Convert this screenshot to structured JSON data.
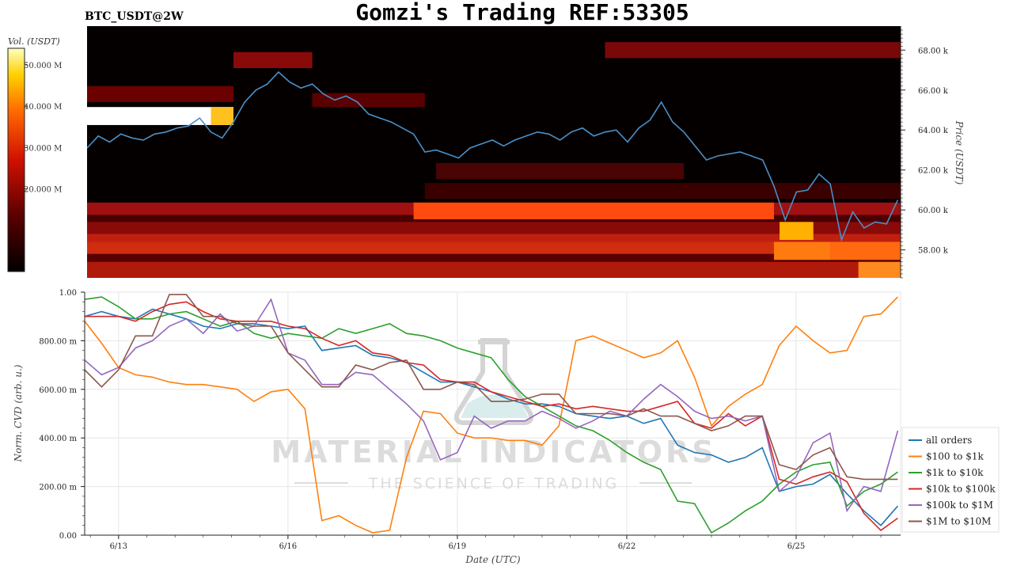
{
  "header": {
    "pair_label": "BTC_USDT@2W",
    "title": "Gomzi's Trading REF:53305"
  },
  "watermark": {
    "main": "MATERIAL INDICATORS",
    "sub": "THE SCIENCE OF TRADING"
  },
  "colors": {
    "heatmap_bg": "#050000",
    "price_line": "#4a90c8",
    "grid": "#e6e6e6"
  },
  "chart_data": [
    {
      "type": "heatmap",
      "name_label": "Volume heatmap",
      "colorbar": {
        "label": "Vol. (USDT)",
        "ticks": [
          "20.000 M",
          "30.000 M",
          "40.000 M",
          "50.000 M"
        ],
        "tick_values": [
          20,
          30,
          40,
          50
        ],
        "range": [
          0,
          54
        ]
      },
      "y_axis": {
        "label": "Price (USDT)",
        "ticks": [
          "58.00 k",
          "60.00 k",
          "62.00 k",
          "64.00 k",
          "66.00 k",
          "68.00 k"
        ],
        "tick_values": [
          58,
          60,
          62,
          64,
          66,
          68
        ],
        "range": [
          56.6,
          69.2
        ]
      },
      "x_range": [
        12.4,
        26.85
      ],
      "price_series": {
        "x": [
          12.4,
          12.6,
          12.8,
          13.0,
          13.2,
          13.4,
          13.6,
          13.8,
          14.0,
          14.2,
          14.4,
          14.6,
          14.8,
          15.0,
          15.2,
          15.4,
          15.6,
          15.8,
          16.0,
          16.2,
          16.4,
          16.6,
          16.8,
          17.0,
          17.2,
          17.4,
          17.6,
          17.8,
          18.0,
          18.2,
          18.4,
          18.6,
          18.8,
          19.0,
          19.2,
          19.4,
          19.6,
          19.8,
          20.0,
          20.2,
          20.4,
          20.6,
          20.8,
          21.0,
          21.2,
          21.4,
          21.6,
          21.8,
          22.0,
          22.2,
          22.4,
          22.6,
          22.8,
          23.0,
          23.2,
          23.4,
          23.6,
          23.8,
          24.0,
          24.2,
          24.4,
          24.6,
          24.8,
          25.0,
          25.2,
          25.4,
          25.6,
          25.8,
          26.0,
          26.2,
          26.4,
          26.6,
          26.8
        ],
        "y": [
          63.1,
          63.7,
          63.4,
          63.8,
          63.6,
          63.5,
          63.8,
          63.9,
          64.1,
          64.2,
          64.6,
          63.9,
          63.6,
          64.4,
          65.4,
          66.0,
          66.3,
          66.9,
          66.4,
          66.1,
          66.3,
          65.8,
          65.5,
          65.7,
          65.4,
          64.8,
          64.6,
          64.4,
          64.1,
          63.8,
          62.9,
          63.0,
          62.8,
          62.6,
          63.1,
          63.3,
          63.5,
          63.2,
          63.5,
          63.7,
          63.9,
          63.8,
          63.5,
          63.9,
          64.1,
          63.7,
          63.9,
          64.0,
          63.4,
          64.1,
          64.5,
          65.4,
          64.4,
          63.9,
          63.2,
          62.5,
          62.7,
          62.8,
          62.9,
          62.7,
          62.5,
          61.2,
          59.5,
          60.9,
          61.0,
          61.8,
          61.3,
          58.5,
          59.9,
          59.1,
          59.4,
          59.3,
          60.5
        ]
      }
    },
    {
      "type": "line",
      "x_axis": {
        "label": "Date (UTC)",
        "ticks": [
          "6/13",
          "6/16",
          "6/19",
          "6/22",
          "6/25"
        ],
        "tick_values": [
          13,
          16,
          19,
          22,
          25
        ],
        "range": [
          12.4,
          26.85
        ]
      },
      "y_axis": {
        "label": "Norm. CVD (arb. u.)",
        "ticks": [
          "0.00",
          "200.00 m",
          "400.00 m",
          "600.00 m",
          "800.00 m",
          "1.00"
        ],
        "tick_values": [
          0,
          0.2,
          0.4,
          0.6,
          0.8,
          1.0
        ],
        "range": [
          0,
          1
        ]
      },
      "x": [
        12.4,
        12.7,
        13.0,
        13.3,
        13.6,
        13.9,
        14.2,
        14.5,
        14.8,
        15.1,
        15.4,
        15.7,
        16.0,
        16.3,
        16.6,
        16.9,
        17.2,
        17.5,
        17.8,
        18.1,
        18.4,
        18.7,
        19.0,
        19.3,
        19.6,
        19.9,
        20.2,
        20.5,
        20.8,
        21.1,
        21.4,
        21.7,
        22.0,
        22.3,
        22.6,
        22.9,
        23.2,
        23.5,
        23.8,
        24.1,
        24.4,
        24.7,
        25.0,
        25.3,
        25.6,
        25.9,
        26.2,
        26.5,
        26.8
      ],
      "legend": {
        "placement": "right"
      },
      "series": [
        {
          "name": "all orders",
          "color": "#1f77b4",
          "values": [
            0.9,
            0.92,
            0.9,
            0.89,
            0.93,
            0.91,
            0.89,
            0.86,
            0.85,
            0.87,
            0.87,
            0.86,
            0.85,
            0.86,
            0.76,
            0.77,
            0.78,
            0.74,
            0.73,
            0.71,
            0.67,
            0.63,
            0.63,
            0.61,
            0.59,
            0.56,
            0.54,
            0.54,
            0.53,
            0.5,
            0.49,
            0.48,
            0.49,
            0.46,
            0.48,
            0.37,
            0.34,
            0.33,
            0.3,
            0.32,
            0.36,
            0.18,
            0.2,
            0.21,
            0.25,
            0.17,
            0.1,
            0.04,
            0.12
          ]
        },
        {
          "name": "$100 to $1k",
          "color": "#ff7f0e",
          "values": [
            0.88,
            0.79,
            0.69,
            0.66,
            0.65,
            0.63,
            0.62,
            0.62,
            0.61,
            0.6,
            0.55,
            0.59,
            0.6,
            0.52,
            0.06,
            0.08,
            0.04,
            0.01,
            0.02,
            0.32,
            0.51,
            0.5,
            0.42,
            0.4,
            0.4,
            0.39,
            0.39,
            0.37,
            0.45,
            0.8,
            0.82,
            0.79,
            0.76,
            0.73,
            0.75,
            0.8,
            0.65,
            0.45,
            0.53,
            0.58,
            0.62,
            0.78,
            0.86,
            0.8,
            0.75,
            0.76,
            0.9,
            0.91,
            0.98
          ]
        },
        {
          "name": "$1k to $10k",
          "color": "#2ca02c",
          "values": [
            0.97,
            0.98,
            0.94,
            0.89,
            0.89,
            0.91,
            0.92,
            0.89,
            0.86,
            0.88,
            0.83,
            0.81,
            0.83,
            0.82,
            0.81,
            0.85,
            0.83,
            0.85,
            0.87,
            0.83,
            0.82,
            0.8,
            0.77,
            0.75,
            0.73,
            0.64,
            0.57,
            0.53,
            0.49,
            0.45,
            0.43,
            0.39,
            0.34,
            0.3,
            0.27,
            0.14,
            0.13,
            0.01,
            0.05,
            0.1,
            0.14,
            0.21,
            0.26,
            0.29,
            0.3,
            0.12,
            0.18,
            0.21,
            0.26
          ]
        },
        {
          "name": "$10k to $100k",
          "color": "#d62728",
          "values": [
            0.9,
            0.9,
            0.9,
            0.88,
            0.92,
            0.95,
            0.96,
            0.92,
            0.89,
            0.88,
            0.88,
            0.88,
            0.86,
            0.85,
            0.81,
            0.78,
            0.8,
            0.75,
            0.74,
            0.71,
            0.7,
            0.64,
            0.63,
            0.63,
            0.59,
            0.57,
            0.55,
            0.53,
            0.54,
            0.52,
            0.53,
            0.52,
            0.51,
            0.51,
            0.53,
            0.55,
            0.46,
            0.44,
            0.5,
            0.45,
            0.49,
            0.23,
            0.21,
            0.24,
            0.26,
            0.22,
            0.09,
            0.02,
            0.07
          ]
        },
        {
          "name": "$100k to $1M",
          "color": "#9467bd",
          "values": [
            0.72,
            0.66,
            0.69,
            0.77,
            0.8,
            0.86,
            0.89,
            0.83,
            0.91,
            0.84,
            0.86,
            0.97,
            0.75,
            0.72,
            0.62,
            0.62,
            0.67,
            0.66,
            0.6,
            0.54,
            0.47,
            0.31,
            0.34,
            0.49,
            0.44,
            0.47,
            0.47,
            0.51,
            0.48,
            0.44,
            0.47,
            0.51,
            0.49,
            0.56,
            0.62,
            0.57,
            0.51,
            0.48,
            0.49,
            0.47,
            0.49,
            0.18,
            0.24,
            0.38,
            0.42,
            0.1,
            0.2,
            0.18,
            0.43
          ]
        },
        {
          "name": "$1M to $10M",
          "color": "#8c564b",
          "values": [
            0.68,
            0.61,
            0.68,
            0.82,
            0.82,
            0.99,
            0.99,
            0.9,
            0.9,
            0.87,
            0.86,
            0.86,
            0.75,
            0.68,
            0.61,
            0.61,
            0.7,
            0.68,
            0.71,
            0.72,
            0.6,
            0.6,
            0.63,
            0.62,
            0.55,
            0.55,
            0.56,
            0.58,
            0.58,
            0.5,
            0.5,
            0.5,
            0.49,
            0.52,
            0.49,
            0.49,
            0.46,
            0.43,
            0.45,
            0.49,
            0.49,
            0.29,
            0.27,
            0.33,
            0.36,
            0.24,
            0.23,
            0.23,
            0.23
          ]
        }
      ]
    }
  ]
}
